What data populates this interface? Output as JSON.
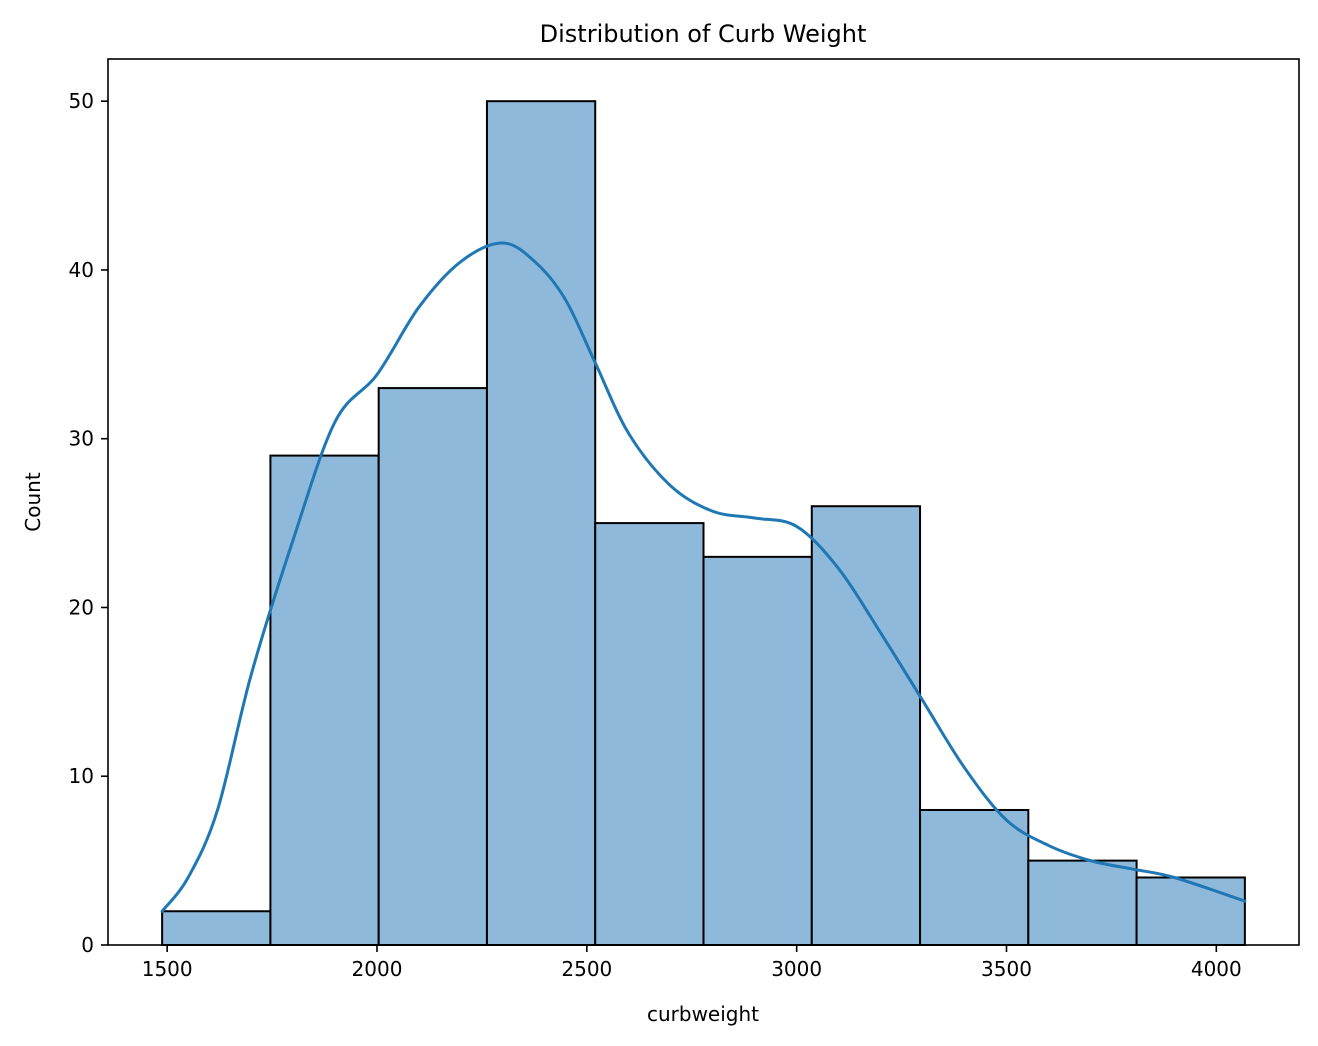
{
  "chart_data": {
    "type": "histogram",
    "title": "Distribution of Curb Weight",
    "xlabel": "curbweight",
    "ylabel": "Count",
    "bins": [
      {
        "start": 1488,
        "end": 1746,
        "count": 2
      },
      {
        "start": 1746,
        "end": 2004,
        "count": 29
      },
      {
        "start": 2004,
        "end": 2262,
        "count": 33
      },
      {
        "start": 2262,
        "end": 2520,
        "count": 50
      },
      {
        "start": 2520,
        "end": 2778,
        "count": 25
      },
      {
        "start": 2778,
        "end": 3036,
        "count": 23
      },
      {
        "start": 3036,
        "end": 3294,
        "count": 26
      },
      {
        "start": 3294,
        "end": 3552,
        "count": 8
      },
      {
        "start": 3552,
        "end": 3810,
        "count": 5
      },
      {
        "start": 3810,
        "end": 4068,
        "count": 4
      }
    ],
    "kde": {
      "x": [
        1488,
        1550,
        1620,
        1700,
        1800,
        1900,
        2000,
        2100,
        2200,
        2300,
        2380,
        2450,
        2520,
        2600,
        2700,
        2800,
        2900,
        3000,
        3100,
        3200,
        3300,
        3400,
        3500,
        3600,
        3700,
        3800,
        3900,
        4068
      ],
      "y": [
        2,
        4,
        8,
        16,
        24,
        31,
        33.8,
        37.8,
        40.5,
        41.6,
        40.4,
        38.2,
        34.5,
        30.3,
        27.2,
        25.7,
        25.3,
        24.8,
        22.3,
        18.5,
        14.5,
        10.5,
        7.4,
        5.9,
        5.0,
        4.5,
        4.0,
        2.6
      ]
    },
    "xticks": [
      1500,
      2000,
      2500,
      3000,
      3500,
      4000
    ],
    "yticks": [
      0,
      10,
      20,
      30,
      40,
      50
    ],
    "xlim": [
      1359,
      4197
    ],
    "ylim": [
      0,
      52.5
    ],
    "bar_color": "#8fb9da",
    "edge_color": "#000000",
    "line_color": "#1f77b4",
    "grid": false,
    "legend": false
  }
}
